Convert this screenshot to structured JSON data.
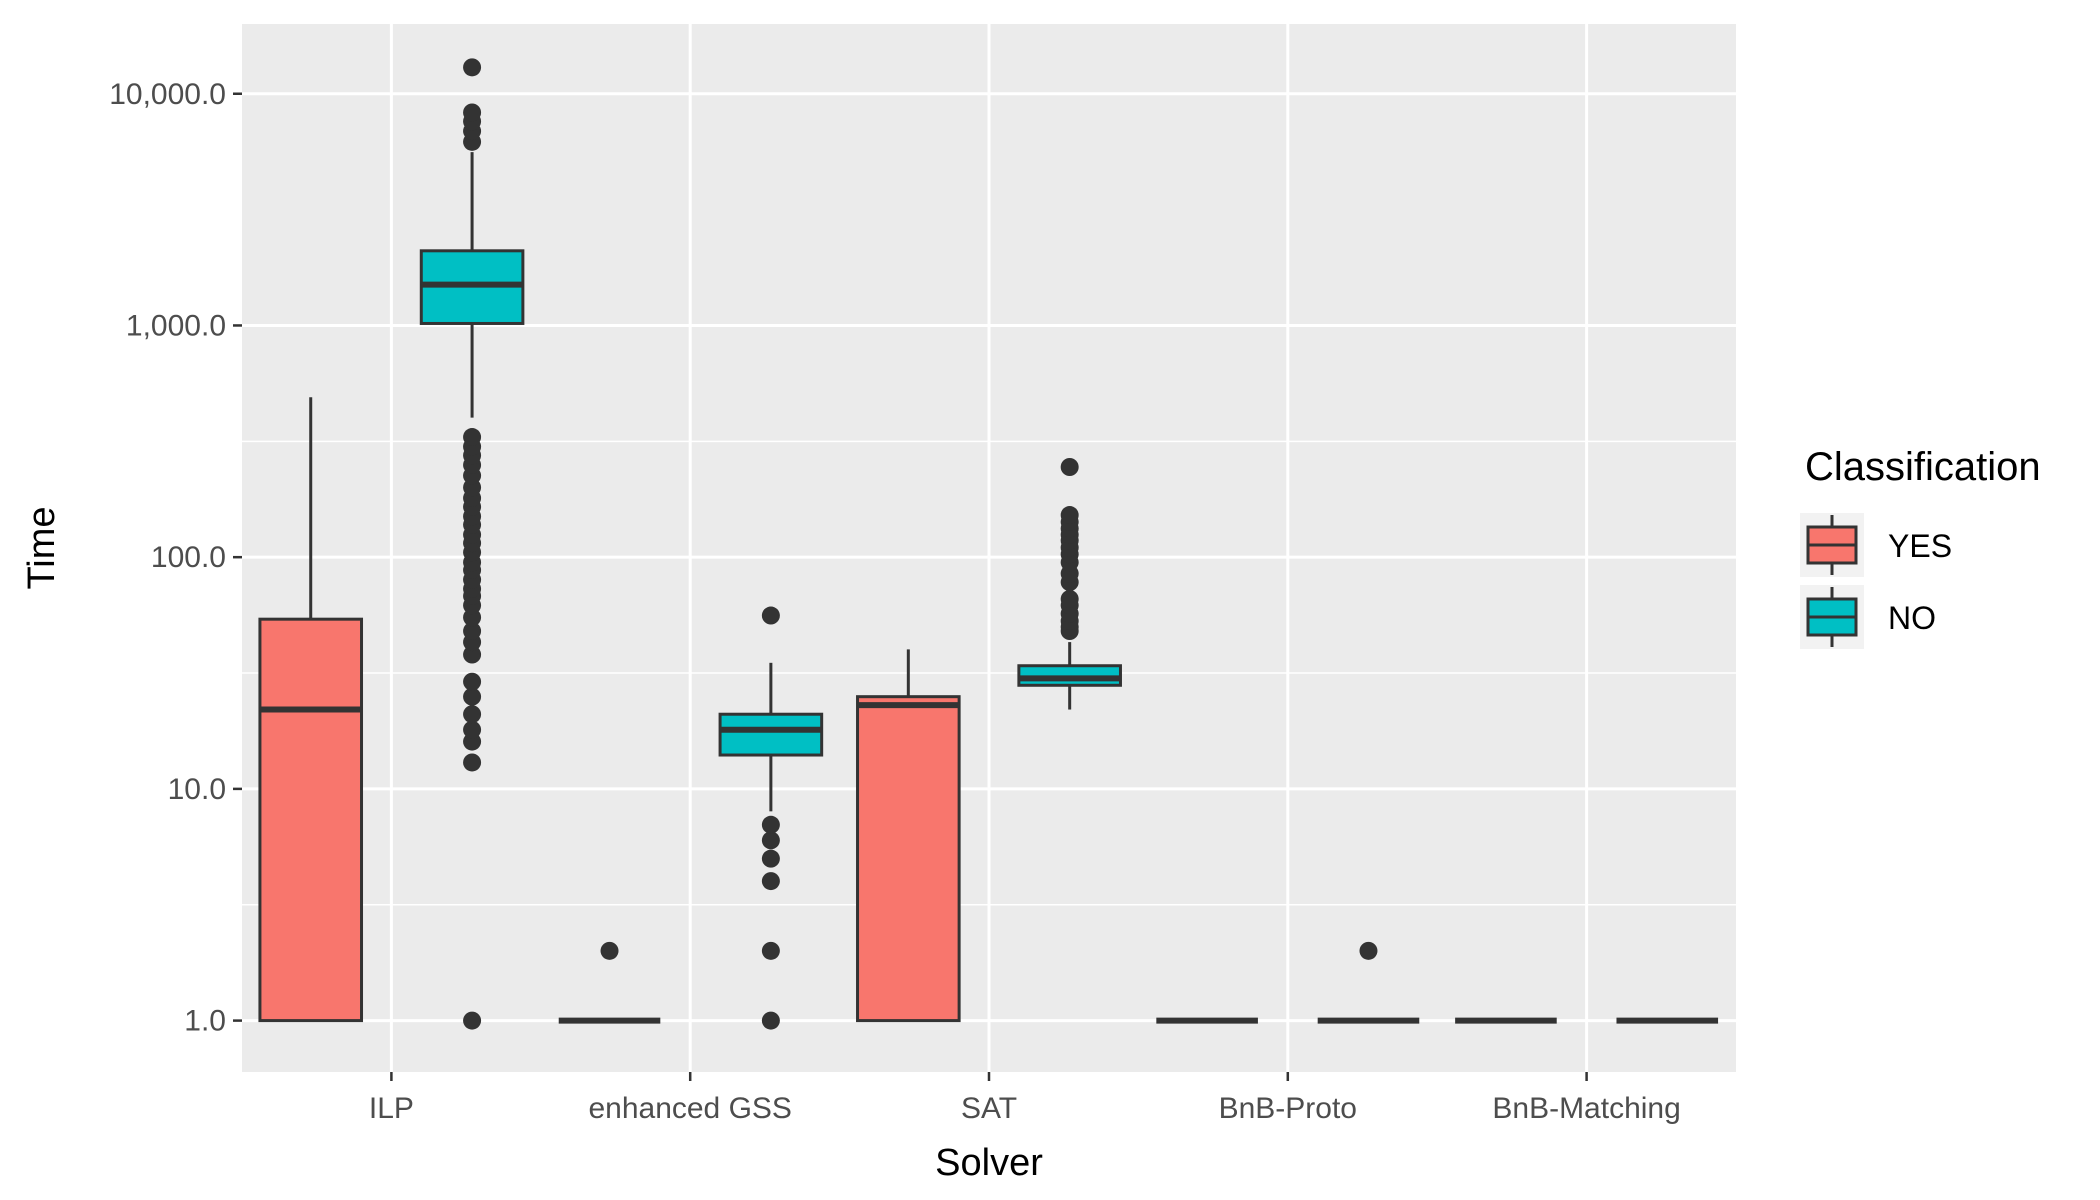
{
  "chart_data": {
    "type": "boxplot",
    "xlabel": "Solver",
    "ylabel": "Time",
    "y_scale": "log10",
    "ylim": [
      0.6,
      20000
    ],
    "y_ticks": [
      1,
      10,
      100,
      1000,
      10000
    ],
    "y_tick_labels": [
      "1.0",
      "10.0",
      "100.0",
      "1,000.0",
      "10,000.0"
    ],
    "grid": true,
    "categories": [
      "ILP",
      "enhanced GSS",
      "SAT",
      "BnB-Proto",
      "BnB-Matching"
    ],
    "legend": {
      "title": "Classification",
      "placement": "right",
      "entries": [
        {
          "label": "YES",
          "color": "#F8766D"
        },
        {
          "label": "NO",
          "color": "#00BFC4"
        }
      ]
    },
    "series": [
      {
        "name": "YES",
        "color": "#F8766D",
        "boxes": [
          {
            "category": "ILP",
            "whisker_low": 1,
            "q1": 1,
            "median": 22,
            "q3": 54,
            "whisker_high": 490,
            "outliers": []
          },
          {
            "category": "enhanced GSS",
            "whisker_low": 1,
            "q1": 1,
            "median": 1,
            "q3": 1,
            "whisker_high": 1,
            "outliers": [
              2
            ]
          },
          {
            "category": "SAT",
            "whisker_low": 1,
            "q1": 1,
            "median": 23,
            "q3": 25,
            "whisker_high": 40,
            "outliers": []
          },
          {
            "category": "BnB-Proto",
            "whisker_low": 1,
            "q1": 1,
            "median": 1,
            "q3": 1,
            "whisker_high": 1,
            "outliers": []
          },
          {
            "category": "BnB-Matching",
            "whisker_low": 1,
            "q1": 1,
            "median": 1,
            "q3": 1,
            "whisker_high": 1,
            "outliers": []
          }
        ]
      },
      {
        "name": "NO",
        "color": "#00BFC4",
        "boxes": [
          {
            "category": "ILP",
            "whisker_low": 400,
            "q1": 1020,
            "median": 1500,
            "q3": 2100,
            "whisker_high": 5600,
            "outliers": [
              1,
              13,
              16,
              18,
              21,
              25,
              29,
              38,
              43,
              48,
              55,
              62,
              68,
              73,
              80,
              88,
              95,
              105,
              115,
              125,
              138,
              150,
              165,
              180,
              200,
              225,
              250,
              275,
              300,
              330,
              6200,
              6900,
              7600,
              8300,
              13000
            ]
          },
          {
            "category": "enhanced GSS",
            "whisker_low": 8,
            "q1": 14,
            "median": 18,
            "q3": 21,
            "whisker_high": 35,
            "outliers": [
              1,
              2,
              4,
              5,
              6,
              7,
              56
            ]
          },
          {
            "category": "SAT",
            "whisker_low": 22,
            "q1": 28,
            "median": 30,
            "q3": 34,
            "whisker_high": 43,
            "outliers": [
              48,
              50,
              53,
              57,
              62,
              66,
              78,
              85,
              95,
              103,
              110,
              118,
              125,
              133,
              142,
              152,
              245
            ]
          },
          {
            "category": "BnB-Proto",
            "whisker_low": 1,
            "q1": 1,
            "median": 1,
            "q3": 1,
            "whisker_high": 1,
            "outliers": [
              2
            ]
          },
          {
            "category": "BnB-Matching",
            "whisker_low": 1,
            "q1": 1,
            "median": 1,
            "q3": 1,
            "whisker_high": 1,
            "outliers": []
          }
        ]
      }
    ]
  }
}
